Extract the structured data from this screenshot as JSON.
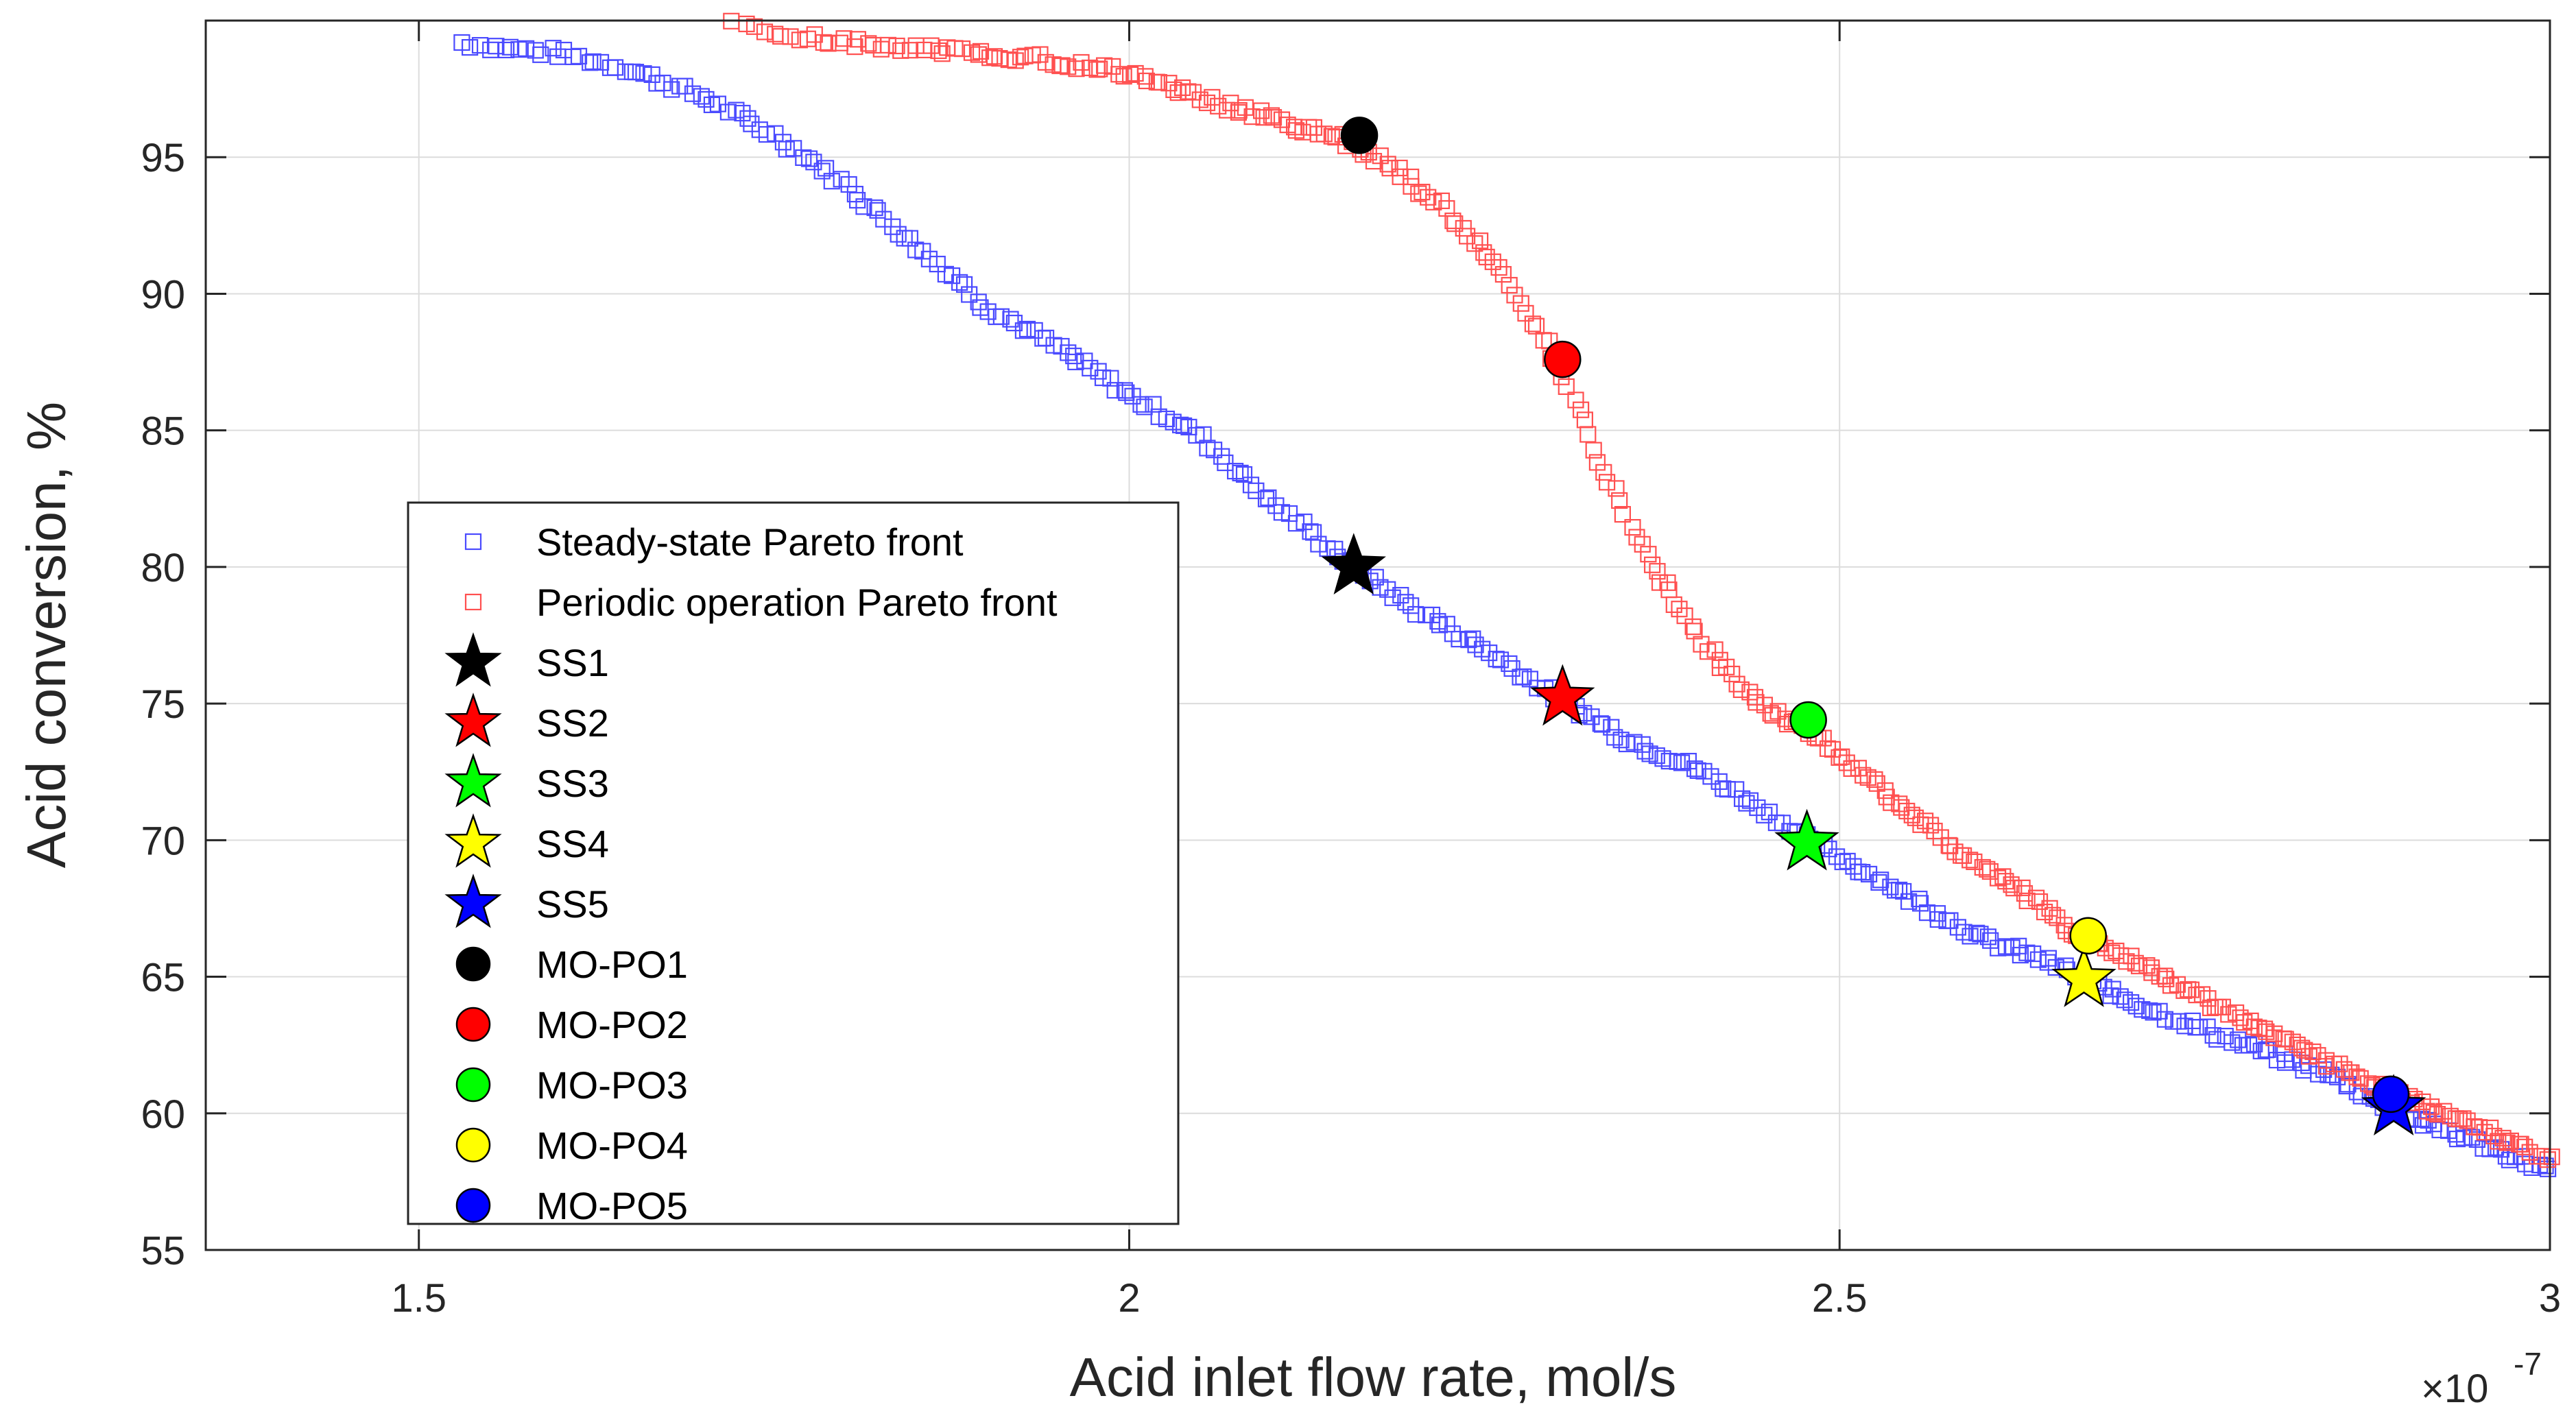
{
  "chart_data": {
    "type": "scatter",
    "xlabel": "Acid inlet flow rate, mol/s",
    "ylabel": "Acid conversion, %",
    "x_exponent_label": "×10",
    "x_exponent_power": "-7",
    "xlim": [
      1.35,
      3.0
    ],
    "ylim": [
      55,
      100
    ],
    "xticks": [
      1.5,
      2,
      2.5,
      3
    ],
    "xtick_labels": [
      "1.5",
      "2",
      "2.5",
      "3"
    ],
    "yticks": [
      55,
      60,
      65,
      70,
      75,
      80,
      85,
      90,
      95
    ],
    "ytick_labels": [
      "55",
      "60",
      "65",
      "70",
      "75",
      "80",
      "85",
      "90",
      "95"
    ],
    "grid": true,
    "legend_position": "lower-left",
    "series": [
      {
        "name": "Steady-state Pareto front",
        "marker": "square-open",
        "color": "#4b4bff",
        "curve_x": [
          1.53,
          1.56,
          1.6,
          1.65,
          1.7,
          1.75,
          1.8,
          1.85,
          1.9,
          1.95,
          2.0,
          2.05,
          2.1,
          2.158,
          2.2,
          2.25,
          2.3,
          2.35,
          2.4,
          2.45,
          2.48,
          2.52,
          2.56,
          2.6,
          2.65,
          2.67,
          2.72,
          2.78,
          2.85,
          2.89,
          2.93,
          3.0
        ],
        "curve_y": [
          99.2,
          99.0,
          98.8,
          98.2,
          97.2,
          95.8,
          94.0,
          91.8,
          89.5,
          88.0,
          86.3,
          84.8,
          82.4,
          80.0,
          78.5,
          77.0,
          75.3,
          73.7,
          72.6,
          71.0,
          69.9,
          68.8,
          67.6,
          66.4,
          65.5,
          64.9,
          63.8,
          62.6,
          61.3,
          60.1,
          59.3,
          57.9
        ]
      },
      {
        "name": "Periodic operation Pareto front",
        "marker": "square-open",
        "color": "#ff5050",
        "curve_x": [
          1.72,
          1.75,
          1.8,
          1.87,
          1.92,
          1.98,
          2.02,
          2.06,
          2.1,
          2.15,
          2.18,
          2.22,
          2.26,
          2.3,
          2.33,
          2.36,
          2.4,
          2.44,
          2.48,
          2.53,
          2.58,
          2.63,
          2.67,
          2.72,
          2.78,
          2.84,
          2.89,
          2.95,
          3.0
        ],
        "curve_y": [
          99.9,
          99.5,
          99.2,
          98.9,
          98.7,
          98.3,
          97.8,
          97.0,
          96.4,
          95.7,
          94.8,
          93.2,
          91.0,
          87.6,
          84.0,
          80.8,
          77.5,
          75.0,
          74.0,
          71.8,
          69.8,
          68.0,
          66.5,
          65.2,
          63.5,
          62.0,
          60.7,
          59.5,
          58.3
        ]
      }
    ],
    "markers": [
      {
        "name": "SS1",
        "shape": "star",
        "color": "#000000",
        "x": 2.158,
        "y": 80.0
      },
      {
        "name": "SS2",
        "shape": "star",
        "color": "#ff0000",
        "x": 2.305,
        "y": 75.2
      },
      {
        "name": "SS3",
        "shape": "star",
        "color": "#00ff00",
        "x": 2.477,
        "y": 69.9
      },
      {
        "name": "SS4",
        "shape": "star",
        "color": "#ffff00",
        "x": 2.672,
        "y": 64.9
      },
      {
        "name": "SS5",
        "shape": "star",
        "color": "#0000ff",
        "x": 2.89,
        "y": 60.2
      },
      {
        "name": "MO-PO1",
        "shape": "circle",
        "color": "#000000",
        "x": 2.162,
        "y": 95.8
      },
      {
        "name": "MO-PO2",
        "shape": "circle",
        "color": "#ff0000",
        "x": 2.305,
        "y": 87.6
      },
      {
        "name": "MO-PO3",
        "shape": "circle",
        "color": "#00ff00",
        "x": 2.478,
        "y": 74.4
      },
      {
        "name": "MO-PO4",
        "shape": "circle",
        "color": "#ffff00",
        "x": 2.675,
        "y": 66.5
      },
      {
        "name": "MO-PO5",
        "shape": "circle",
        "color": "#0000ff",
        "x": 2.888,
        "y": 60.7
      }
    ]
  }
}
